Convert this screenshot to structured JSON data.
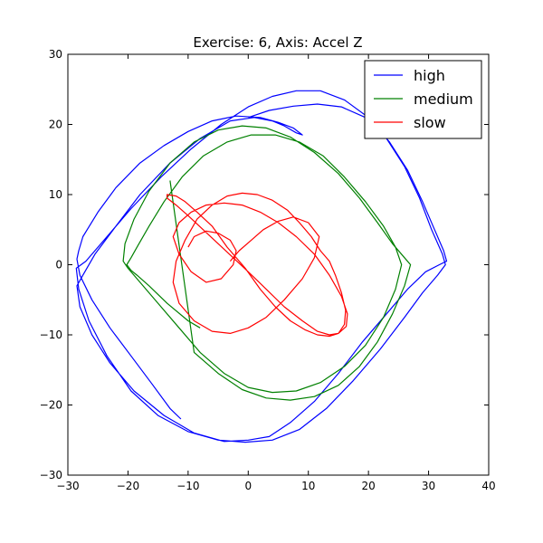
{
  "chart_data": {
    "type": "line",
    "title": "Exercise: 6, Axis: Accel Z",
    "xlabel": "",
    "ylabel": "",
    "xlim": [
      -30,
      40
    ],
    "ylim": [
      -30,
      30
    ],
    "x_ticks": [
      -30,
      -20,
      -10,
      0,
      10,
      20,
      30,
      40
    ],
    "y_ticks": [
      -30,
      -20,
      -10,
      0,
      10,
      20,
      30
    ],
    "grid": false,
    "legend_position": "top-right",
    "series": [
      {
        "name": "high",
        "color": "#0000ff",
        "x": [
          -11.2,
          -13.0,
          -16.0,
          -19.5,
          -23.0,
          -26.0,
          -28.0,
          -28.5,
          -28.2,
          -27.5,
          -25.0,
          -22.0,
          -18.0,
          -14.0,
          -10.0,
          -6.0,
          -2.0,
          2.0,
          5.0,
          7.5,
          9.0,
          8.0,
          6.0,
          4.0,
          1.0,
          -3.0,
          -8.0,
          -13.0,
          -18.0,
          -22.0,
          -25.5,
          -27.5,
          -28.5,
          -28.0,
          -26.0,
          -23.0,
          -19.0,
          -14.0,
          -9.0,
          -4.0,
          0.0,
          3.5,
          7.0,
          11.0,
          15.0,
          19.0,
          23.0,
          26.5,
          29.5,
          31.8,
          33.0,
          32.5,
          31.0,
          29.0,
          26.5,
          23.5,
          20.0,
          16.0,
          12.0,
          8.0,
          4.0,
          0.0,
          -4.5,
          -9.5,
          -14.5,
          -19.5,
          -24.0,
          -27.0,
          -28.6,
          -28.2,
          -26.5,
          -23.5,
          -19.5,
          -15.0,
          -10.0,
          -5.0,
          -0.5,
          4.0,
          8.5,
          13.0,
          17.5,
          22.0,
          26.0,
          29.0,
          31.5,
          32.8,
          32.3,
          30.5,
          28.5,
          26.0,
          23.0,
          19.5,
          15.5,
          11.5,
          7.5,
          3.5,
          0.0
        ],
        "y": [
          -22.0,
          -20.5,
          -17.0,
          -13.0,
          -9.0,
          -5.0,
          -1.5,
          0.8,
          2.0,
          4.0,
          7.5,
          11.0,
          14.5,
          17.0,
          19.0,
          20.5,
          21.2,
          21.0,
          20.3,
          19.5,
          18.5,
          18.8,
          19.8,
          20.5,
          21.0,
          20.5,
          18.0,
          14.5,
          10.0,
          5.5,
          1.5,
          -1.5,
          -3.0,
          -6.0,
          -10.0,
          -14.0,
          -18.0,
          -21.5,
          -24.0,
          -25.2,
          -25.0,
          -24.5,
          -22.5,
          -19.5,
          -15.5,
          -11.0,
          -7.0,
          -3.5,
          -1.0,
          0.0,
          0.5,
          2.0,
          5.0,
          9.0,
          13.5,
          17.5,
          21.0,
          23.5,
          24.8,
          24.8,
          24.0,
          22.5,
          20.0,
          16.5,
          12.5,
          8.0,
          3.5,
          0.5,
          -0.5,
          -3.5,
          -8.0,
          -13.0,
          -18.0,
          -21.5,
          -23.8,
          -25.0,
          -25.3,
          -25.0,
          -23.5,
          -20.5,
          -16.5,
          -12.0,
          -7.5,
          -4.0,
          -1.5,
          0.0,
          1.5,
          5.0,
          9.5,
          14.0,
          18.0,
          21.0,
          22.5,
          22.9,
          22.6,
          22.0,
          21.0
        ]
      },
      {
        "name": "medium",
        "color": "#008000",
        "x": [
          -8.0,
          -10.0,
          -13.5,
          -16.5,
          -18.5,
          -19.5,
          -20.2,
          -19.5,
          -18.5,
          -16.5,
          -14.0,
          -11.0,
          -7.5,
          -3.5,
          0.5,
          4.5,
          8.5,
          12.5,
          16.0,
          19.5,
          22.5,
          24.5,
          25.5,
          24.5,
          22.5,
          19.5,
          16.0,
          12.0,
          8.0,
          4.0,
          0.0,
          -4.0,
          -8.0,
          -11.5,
          -15.0,
          -18.0,
          -20.0,
          -20.8,
          -20.5,
          -19.0,
          -16.5,
          -13.0,
          -9.0,
          -5.0,
          -1.0,
          3.0,
          7.0,
          11.0,
          15.0,
          18.5,
          21.5,
          24.0,
          26.0,
          27.0,
          26.0,
          24.0,
          21.5,
          18.5,
          15.0,
          11.0,
          7.0,
          3.0,
          -1.0,
          -5.0,
          -9.0,
          -13.0
        ],
        "y": [
          -9.0,
          -8.0,
          -5.5,
          -3.0,
          -1.5,
          -0.8,
          0.0,
          1.0,
          2.5,
          5.5,
          9.0,
          12.5,
          15.5,
          17.5,
          18.5,
          18.5,
          17.5,
          15.5,
          12.5,
          9.0,
          5.5,
          2.5,
          0.0,
          -3.5,
          -7.5,
          -11.5,
          -14.5,
          -16.8,
          -18.0,
          -18.2,
          -17.5,
          -15.5,
          -12.5,
          -9.0,
          -5.5,
          -2.5,
          -0.5,
          0.5,
          3.0,
          6.5,
          10.5,
          14.5,
          17.5,
          19.2,
          19.8,
          19.5,
          18.2,
          16.0,
          13.0,
          9.5,
          6.0,
          3.0,
          1.0,
          0.0,
          -3.0,
          -7.0,
          -11.0,
          -14.5,
          -17.2,
          -18.8,
          -19.3,
          -19.0,
          -17.8,
          -15.5,
          -12.5,
          12.0
        ]
      },
      {
        "name": "slow",
        "color": "#ff0000",
        "x": [
          -3.0,
          -1.5,
          0.5,
          2.5,
          5.0,
          7.5,
          10.0,
          11.8,
          11.0,
          9.0,
          6.0,
          3.0,
          0.0,
          -3.0,
          -6.0,
          -9.0,
          -11.5,
          -12.5,
          -12.0,
          -10.5,
          -8.5,
          -6.0,
          -3.5,
          -1.0,
          1.5,
          4.0,
          6.5,
          8.5,
          10.5,
          12.0,
          13.5,
          14.5,
          15.5,
          16.2,
          16.0,
          15.0,
          13.5,
          11.5,
          9.5,
          7.0,
          4.5,
          2.0,
          -0.5,
          -3.5,
          -6.0,
          -8.5,
          -10.5,
          -12.0,
          -13.5,
          -13.5,
          -12.0,
          -10.0,
          -7.5,
          -5.0,
          -2.5,
          0.0,
          3.0,
          6.0,
          9.0,
          11.5,
          13.5,
          15.0,
          16.3,
          16.5,
          15.5,
          13.5,
          11.0,
          8.0,
          5.0,
          2.0,
          -1.0,
          -4.0,
          -7.0,
          -9.5,
          -11.5,
          -12.5,
          -11.5,
          -9.5,
          -7.0,
          -4.5,
          -2.5,
          -2.0,
          -3.0,
          -5.0,
          -7.0,
          -9.0,
          -10.0
        ],
        "y": [
          0.5,
          2.0,
          3.5,
          5.0,
          6.2,
          6.8,
          6.0,
          4.0,
          1.0,
          -2.0,
          -5.0,
          -7.5,
          -9.0,
          -9.8,
          -9.5,
          -8.0,
          -5.5,
          -2.5,
          0.5,
          3.5,
          6.5,
          8.5,
          9.8,
          10.2,
          10.0,
          9.2,
          7.8,
          6.0,
          4.0,
          2.0,
          0.5,
          -1.5,
          -4.0,
          -6.5,
          -8.5,
          -9.8,
          -10.2,
          -10.0,
          -9.3,
          -8.0,
          -6.0,
          -3.5,
          -0.5,
          2.5,
          5.5,
          7.5,
          9.0,
          9.8,
          10.0,
          9.5,
          8.5,
          7.0,
          5.0,
          3.0,
          1.0,
          -1.0,
          -3.5,
          -6.0,
          -8.0,
          -9.5,
          -10.0,
          -9.8,
          -8.8,
          -7.0,
          -4.5,
          -1.5,
          1.5,
          4.0,
          6.0,
          7.5,
          8.5,
          8.8,
          8.5,
          7.5,
          6.0,
          4.0,
          1.5,
          -1.0,
          -2.5,
          -2.0,
          0.0,
          2.0,
          3.5,
          4.5,
          4.8,
          4.0,
          2.5
        ]
      }
    ]
  }
}
